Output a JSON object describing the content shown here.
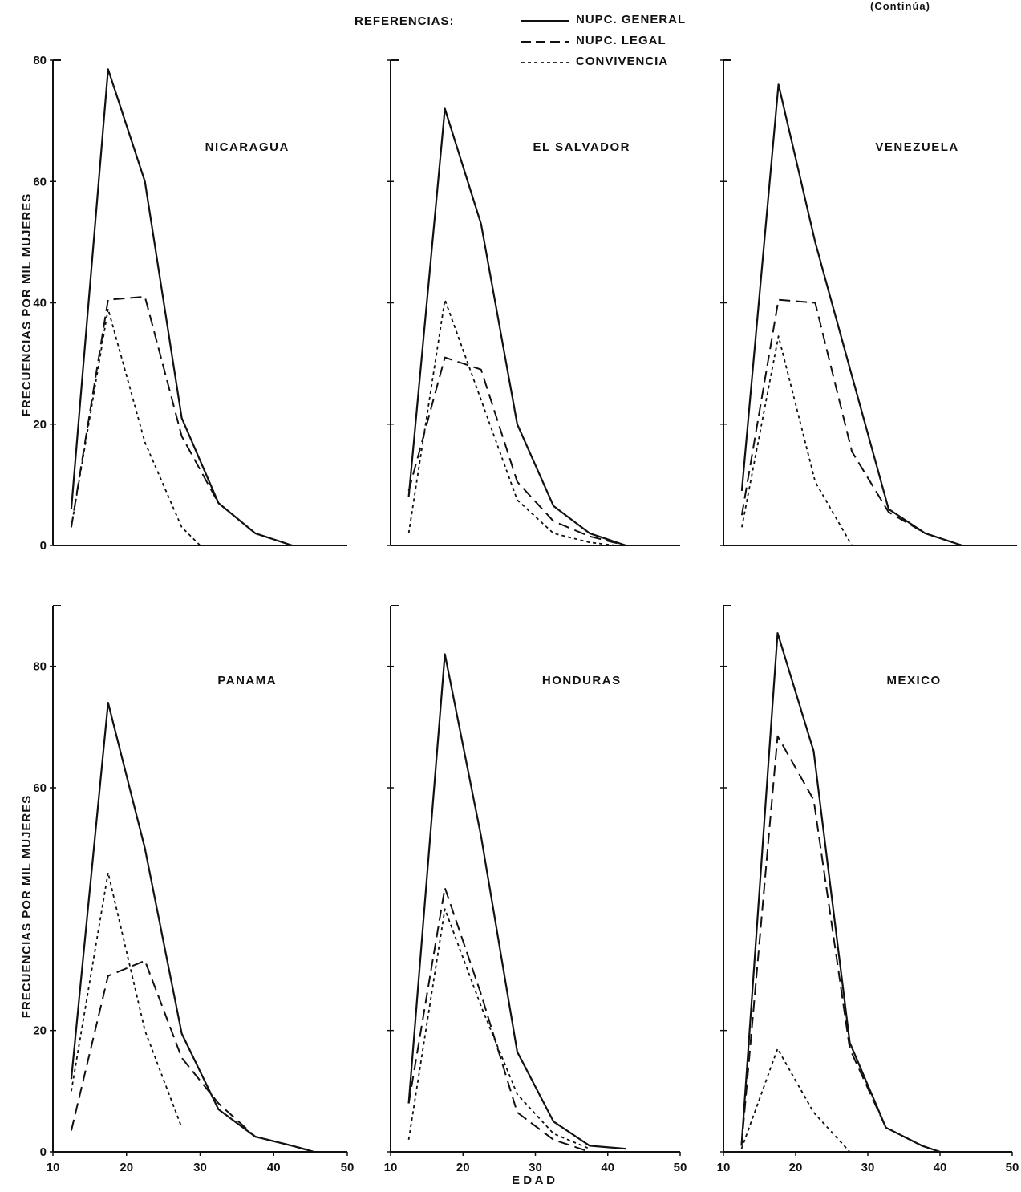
{
  "header": {
    "legend_title": "REFERENCIAS:",
    "continued": "(Continúa)"
  },
  "legend": [
    {
      "label": "NUPC. GENERAL",
      "style": "solid"
    },
    {
      "label": "NUPC. LEGAL",
      "style": "dashed"
    },
    {
      "label": "CONVIVENCIA",
      "style": "dotted"
    }
  ],
  "ylabel": "FRECUENCIAS POR MIL MUJERES",
  "xlabel": "E D A D",
  "top_yticks": [
    "80",
    "60",
    "40",
    "20",
    "0"
  ],
  "bottom_yticks": [
    "80",
    "60",
    "20",
    "0"
  ],
  "xticks": [
    "10",
    "20",
    "30",
    "40",
    "50"
  ],
  "chart_data": [
    {
      "type": "line",
      "title": "NICARAGUA",
      "xlim": [
        10,
        50
      ],
      "ylim": [
        0,
        80
      ],
      "series": [
        {
          "name": "NUPC. GENERAL",
          "x": [
            12.5,
            17.5,
            22.5,
            27.5,
            32.5,
            37.5,
            42.5
          ],
          "y": [
            6,
            78.5,
            60,
            21,
            7,
            2,
            0
          ]
        },
        {
          "name": "NUPC. LEGAL",
          "x": [
            12.5,
            17.5,
            22.5,
            27.5,
            32.5,
            37.5,
            42.5
          ],
          "y": [
            3,
            40.5,
            41,
            18,
            7,
            2,
            0
          ]
        },
        {
          "name": "CONVIVENCIA",
          "x": [
            12.5,
            17.5,
            22.5,
            27.5,
            30
          ],
          "y": [
            3,
            39,
            17,
            3,
            0
          ]
        }
      ]
    },
    {
      "type": "line",
      "title": "EL SALVADOR",
      "xlim": [
        10,
        50
      ],
      "ylim": [
        0,
        80
      ],
      "series": [
        {
          "name": "NUPC. GENERAL",
          "x": [
            12.5,
            17.5,
            22.5,
            27.5,
            32.5,
            37.5,
            42.5
          ],
          "y": [
            8,
            72,
            53,
            20,
            6.5,
            2,
            0
          ]
        },
        {
          "name": "NUPC. LEGAL",
          "x": [
            12.5,
            17.5,
            22.5,
            27.5,
            32.5,
            37.5,
            42.5
          ],
          "y": [
            9,
            31,
            29,
            10.5,
            4,
            1.5,
            0
          ]
        },
        {
          "name": "CONVIVENCIA",
          "x": [
            12.5,
            17.5,
            22.5,
            27.5,
            32.5,
            37.5,
            41
          ],
          "y": [
            2,
            40.5,
            24,
            7.5,
            2,
            0.5,
            0
          ]
        }
      ]
    },
    {
      "type": "line",
      "title": "VENEZUELA",
      "xlim": [
        10,
        50
      ],
      "ylim": [
        0,
        80
      ],
      "series": [
        {
          "name": "NUPC. GENERAL",
          "x": [
            12.5,
            17.5,
            22.5,
            27.5,
            32.5,
            37.5,
            42.5
          ],
          "y": [
            9,
            76,
            50,
            28,
            6,
            2,
            0
          ]
        },
        {
          "name": "NUPC. LEGAL",
          "x": [
            12.5,
            17.5,
            22.5,
            27.5,
            32.5,
            37.5,
            42.5
          ],
          "y": [
            5,
            40.5,
            40,
            15.5,
            5.5,
            2,
            0
          ]
        },
        {
          "name": "CONVIVENCIA",
          "x": [
            12.5,
            17.5,
            22.5,
            27.5
          ],
          "y": [
            3,
            34.5,
            10.5,
            0
          ]
        }
      ]
    },
    {
      "type": "line",
      "title": "PANAMA",
      "xlim": [
        10,
        50
      ],
      "ylim": [
        0,
        90
      ],
      "series": [
        {
          "name": "NUPC. GENERAL",
          "x": [
            12.5,
            17.5,
            22.5,
            27.5,
            32.5,
            37.5,
            42.5,
            45.5
          ],
          "y": [
            12,
            74,
            50,
            19.5,
            7,
            2.5,
            1,
            0
          ]
        },
        {
          "name": "NUPC. LEGAL",
          "x": [
            12.5,
            17.5,
            22.5,
            27.5,
            32.5,
            37.5,
            42.5,
            45.5
          ],
          "y": [
            3.5,
            29,
            31.5,
            15.5,
            8,
            2.5,
            1,
            0
          ]
        },
        {
          "name": "CONVIVENCIA",
          "x": [
            12.5,
            17.5,
            22.5,
            27.5
          ],
          "y": [
            10,
            46,
            20,
            4
          ]
        }
      ]
    },
    {
      "type": "line",
      "title": "HONDURAS",
      "xlim": [
        10,
        50
      ],
      "ylim": [
        0,
        90
      ],
      "series": [
        {
          "name": "NUPC. GENERAL",
          "x": [
            12.5,
            17.5,
            22.5,
            27.5,
            32.5,
            37.5,
            42.5
          ],
          "y": [
            8,
            82,
            52,
            16.5,
            5,
            1,
            0.5
          ]
        },
        {
          "name": "NUPC. LEGAL",
          "x": [
            12.5,
            17.5,
            22.5,
            27.5,
            32.5,
            37.5
          ],
          "y": [
            8,
            43.5,
            26,
            6.5,
            2,
            0
          ]
        },
        {
          "name": "CONVIVENCIA",
          "x": [
            12.5,
            17.5,
            22.5,
            27.5,
            32.5,
            37.5
          ],
          "y": [
            2,
            40,
            24,
            9.5,
            3,
            0.5
          ]
        }
      ]
    },
    {
      "type": "line",
      "title": "MEXICO",
      "xlim": [
        10,
        50
      ],
      "ylim": [
        0,
        90
      ],
      "series": [
        {
          "name": "NUPC. GENERAL",
          "x": [
            12.5,
            17.5,
            22.5,
            27.5,
            32.5,
            37.5,
            40
          ],
          "y": [
            1,
            85.5,
            66,
            18,
            4,
            1,
            0
          ]
        },
        {
          "name": "NUPC. LEGAL",
          "x": [
            12.5,
            17.5,
            22.5,
            27.5,
            32.5,
            37.5,
            40
          ],
          "y": [
            1,
            68.5,
            58,
            17,
            4,
            1,
            0
          ]
        },
        {
          "name": "CONVIVENCIA",
          "x": [
            12.5,
            17.5,
            22.5,
            27.5
          ],
          "y": [
            0.5,
            17,
            6.5,
            0
          ]
        }
      ]
    }
  ]
}
